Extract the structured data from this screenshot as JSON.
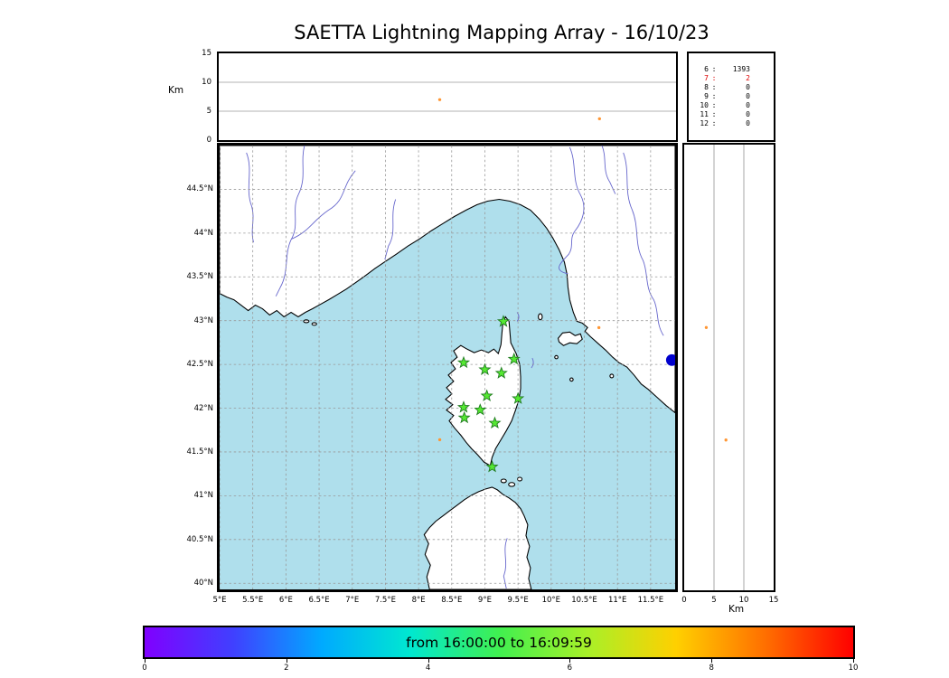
{
  "title": "SAETTA Lightning Mapping Array - 16/10/23",
  "colors": {
    "sea": "#afdfec",
    "land": "#ffffff",
    "coastline": "#000000",
    "river": "#6666cc",
    "grid": "#999999",
    "station_fill": "#55e832",
    "station_edge": "#1f7a1f",
    "marker": "#0000cc",
    "highlight_red": "#dd0000"
  },
  "chart_data": {
    "type": "scatter",
    "map_panel": {
      "lon_min": 5.0,
      "lon_max": 11.87,
      "lat_min": 39.93,
      "lat_max": 45.0,
      "lon_ticks": [
        {
          "v": 5,
          "label": "5°E"
        },
        {
          "v": 5.5,
          "label": "5.5°E"
        },
        {
          "v": 6,
          "label": "6°E"
        },
        {
          "v": 6.5,
          "label": "6.5°E"
        },
        {
          "v": 7,
          "label": "7°E"
        },
        {
          "v": 7.5,
          "label": "7.5°E"
        },
        {
          "v": 8,
          "label": "8°E"
        },
        {
          "v": 8.5,
          "label": "8.5°E"
        },
        {
          "v": 9,
          "label": "9°E"
        },
        {
          "v": 9.5,
          "label": "9.5°E"
        },
        {
          "v": 10,
          "label": "10°E"
        },
        {
          "v": 10.5,
          "label": "10.5°E"
        },
        {
          "v": 11,
          "label": "11°E"
        },
        {
          "v": 11.5,
          "label": "11.5°E"
        }
      ],
      "lat_ticks": [
        {
          "v": 40,
          "label": "40°N"
        },
        {
          "v": 40.5,
          "label": "40.5°N"
        },
        {
          "v": 41,
          "label": "41°N"
        },
        {
          "v": 41.5,
          "label": "41.5°N"
        },
        {
          "v": 42,
          "label": "42°N"
        },
        {
          "v": 42.5,
          "label": "42.5°N"
        },
        {
          "v": 43,
          "label": "43°N"
        },
        {
          "v": 43.5,
          "label": "43.5°N"
        },
        {
          "v": 44,
          "label": "44°N"
        },
        {
          "v": 44.5,
          "label": "44.5°N"
        }
      ]
    },
    "alt_panel": {
      "label": "Km",
      "max": 15,
      "ticks": [
        0,
        5,
        10,
        15
      ],
      "gridlines": [
        5,
        10
      ]
    },
    "right_panel": {
      "label": "Km",
      "max": 15,
      "ticks": [
        0,
        5,
        10,
        15
      ],
      "gridlines": [
        5,
        10
      ]
    },
    "stations": [
      {
        "lon": 9.28,
        "lat": 42.99
      },
      {
        "lon": 8.68,
        "lat": 42.52
      },
      {
        "lon": 9.0,
        "lat": 42.44
      },
      {
        "lon": 9.44,
        "lat": 42.56
      },
      {
        "lon": 9.25,
        "lat": 42.4
      },
      {
        "lon": 9.03,
        "lat": 42.14
      },
      {
        "lon": 9.5,
        "lat": 42.11
      },
      {
        "lon": 8.68,
        "lat": 42.01
      },
      {
        "lon": 8.93,
        "lat": 41.98
      },
      {
        "lon": 8.69,
        "lat": 41.89
      },
      {
        "lon": 9.15,
        "lat": 41.83
      },
      {
        "lon": 9.11,
        "lat": 41.33
      }
    ],
    "sources": [
      {
        "lon": 8.32,
        "lat": 41.64,
        "alt": 7.0,
        "color": "#ff9633"
      },
      {
        "lon": 10.72,
        "lat": 42.92,
        "alt": 3.7,
        "color": "#ff9633"
      }
    ],
    "city_marker": {
      "lon": 11.82,
      "lat": 42.55
    },
    "station_stats": [
      {
        "label": "6",
        "value": "1393",
        "red": false
      },
      {
        "label": "7",
        "value": "2",
        "red": true
      },
      {
        "label": "8",
        "value": "0",
        "red": false
      },
      {
        "label": "9",
        "value": "0",
        "red": false
      },
      {
        "label": "10",
        "value": "0",
        "red": false
      },
      {
        "label": "11",
        "value": "0",
        "red": false
      },
      {
        "label": "12",
        "value": "0",
        "red": false
      }
    ],
    "colorbar": {
      "label": "from 16:00:00 to 16:09:59",
      "min": 0,
      "max": 10,
      "ticks": [
        0,
        2,
        4,
        6,
        8,
        10
      ],
      "gradient": [
        "#8000ff",
        "#4040ff",
        "#00aaff",
        "#00e8d0",
        "#40f050",
        "#a8f028",
        "#ffd000",
        "#ff7000",
        "#ff0000"
      ]
    }
  }
}
